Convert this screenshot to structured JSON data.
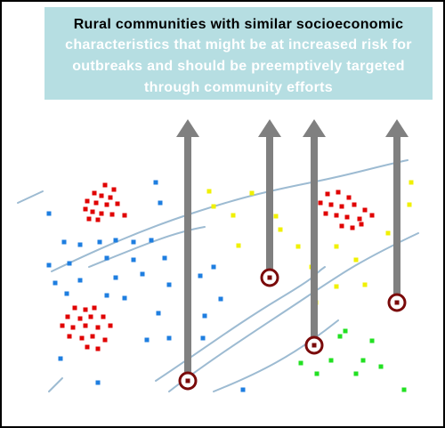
{
  "callout": {
    "lines": [
      "Rural communities with similar socioeconomic",
      "characteristics that might be at increased risk for",
      "outbreaks and should be preemptively targeted",
      "through community efforts"
    ]
  }
}
